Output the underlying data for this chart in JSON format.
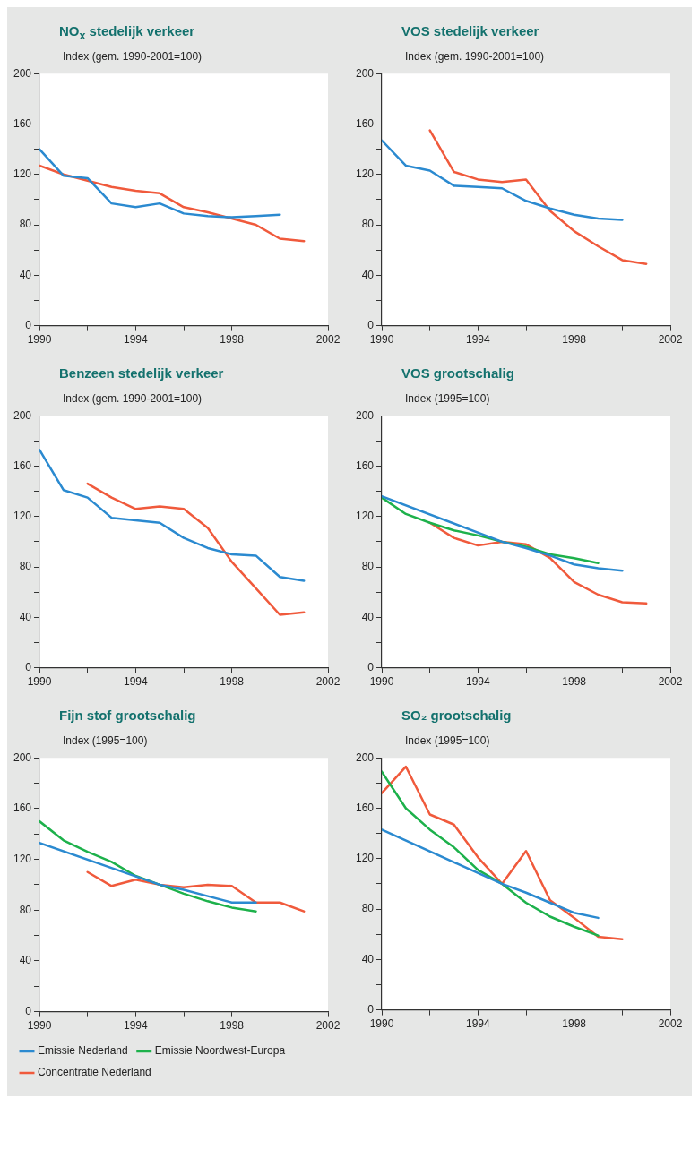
{
  "chart_data": [
    {
      "type": "line",
      "title": "NO$_{x}$ stedelijk verkeer",
      "ylabel": "Index (gem. 1990-2001=100)",
      "xlim": [
        1990,
        2002
      ],
      "xticks": [
        1990,
        {
          "value": 1992,
          "label": null
        },
        1994,
        {
          "value": 1996,
          "label": null
        },
        1998,
        {
          "value": 2000,
          "label": null
        },
        2002
      ],
      "ylim": [
        0,
        200
      ],
      "yticks": [
        0,
        {
          "value": 20,
          "label": null
        },
        40,
        {
          "value": 60,
          "label": null
        },
        80,
        {
          "value": 100,
          "label": null
        },
        120,
        {
          "value": 140,
          "label": null
        },
        160,
        {
          "value": 180,
          "label": null
        },
        200
      ],
      "series": [
        {
          "color": "#2b8ad0",
          "x": [
            1990,
            1991,
            1992,
            1993,
            1994,
            1995,
            1996,
            1997,
            1998,
            1999,
            2000
          ],
          "values": [
            140,
            119,
            117,
            97,
            94,
            97,
            89,
            87,
            86,
            87,
            88
          ]
        },
        {
          "color": "#f05a3c",
          "x": [
            1990,
            1991,
            1992,
            1993,
            1994,
            1995,
            1996,
            1997,
            1998,
            1999,
            2000,
            2001
          ],
          "values": [
            127,
            120,
            115,
            110,
            107,
            105,
            94,
            90,
            85,
            80,
            69,
            67
          ]
        }
      ]
    },
    {
      "type": "line",
      "title": "VOS stedelijk verkeer",
      "ylabel": "Index (gem. 1990-2001=100)",
      "xlim": [
        1990,
        2002
      ],
      "xticks": [
        1990,
        {
          "value": 1992,
          "label": null
        },
        1994,
        {
          "value": 1996,
          "label": null
        },
        1998,
        {
          "value": 2000,
          "label": null
        },
        2002
      ],
      "ylim": [
        0,
        200
      ],
      "yticks": [
        0,
        {
          "value": 20,
          "label": null
        },
        40,
        {
          "value": 60,
          "label": null
        },
        80,
        {
          "value": 100,
          "label": null
        },
        120,
        {
          "value": 140,
          "label": null
        },
        160,
        {
          "value": 180,
          "label": null
        },
        200
      ],
      "series": [
        {
          "color": "#2b8ad0",
          "x": [
            1990,
            1991,
            1992,
            1993,
            1994,
            1995,
            1996,
            1997,
            1998,
            1999,
            2000
          ],
          "values": [
            147,
            127,
            123,
            111,
            110,
            109,
            99,
            93,
            88,
            85,
            84
          ]
        },
        {
          "color": "#f05a3c",
          "x": [
            1992,
            1993,
            1994,
            1995,
            1996,
            1997,
            1998,
            1999,
            2000,
            2001
          ],
          "values": [
            155,
            122,
            116,
            114,
            116,
            91,
            75,
            63,
            52,
            49
          ]
        }
      ]
    },
    {
      "type": "line",
      "title": "Benzeen stedelijk verkeer",
      "ylabel": "Index (gem. 1990-2001=100)",
      "xlim": [
        1990,
        2002
      ],
      "xticks": [
        1990,
        {
          "value": 1992,
          "label": null
        },
        1994,
        {
          "value": 1996,
          "label": null
        },
        1998,
        {
          "value": 2000,
          "label": null
        },
        2002
      ],
      "ylim": [
        0,
        200
      ],
      "yticks": [
        0,
        {
          "value": 20,
          "label": null
        },
        40,
        {
          "value": 60,
          "label": null
        },
        80,
        {
          "value": 100,
          "label": null
        },
        120,
        {
          "value": 140,
          "label": null
        },
        160,
        {
          "value": 180,
          "label": null
        },
        200
      ],
      "series": [
        {
          "color": "#2b8ad0",
          "x": [
            1990,
            1991,
            1992,
            1993,
            1994,
            1995,
            1996,
            1997,
            1998,
            1999,
            2000,
            2001
          ],
          "values": [
            173,
            141,
            135,
            119,
            117,
            115,
            103,
            95,
            90,
            89,
            72,
            69
          ]
        },
        {
          "color": "#f05a3c",
          "x": [
            1992,
            1993,
            1994,
            1995,
            1996,
            1997,
            1998,
            1999,
            2000,
            2001
          ],
          "values": [
            146,
            135,
            126,
            128,
            126,
            111,
            84,
            63,
            42,
            44
          ]
        }
      ]
    },
    {
      "type": "line",
      "title": "VOS grootschalig",
      "ylabel": "Index (1995=100)",
      "xlim": [
        1990,
        2002
      ],
      "xticks": [
        1990,
        {
          "value": 1992,
          "label": null
        },
        1994,
        {
          "value": 1996,
          "label": null
        },
        1998,
        {
          "value": 2000,
          "label": null
        },
        2002
      ],
      "ylim": [
        0,
        200
      ],
      "yticks": [
        0,
        {
          "value": 20,
          "label": null
        },
        40,
        {
          "value": 60,
          "label": null
        },
        80,
        {
          "value": 100,
          "label": null
        },
        120,
        {
          "value": 140,
          "label": null
        },
        160,
        {
          "value": 180,
          "label": null
        },
        200
      ],
      "series": [
        {
          "color": "#2b8ad0",
          "x": [
            1990,
            1995,
            1996,
            1997,
            1998,
            1999,
            2000
          ],
          "values": [
            136,
            100,
            95,
            89,
            82,
            79,
            77
          ]
        },
        {
          "color": "#1db14b",
          "x": [
            1990,
            1991,
            1992,
            1993,
            1994,
            1995,
            1996,
            1997,
            1998,
            1999
          ],
          "values": [
            135,
            122,
            115,
            109,
            105,
            100,
            96,
            90,
            87,
            83
          ]
        },
        {
          "color": "#f05a3c",
          "x": [
            1992,
            1993,
            1994,
            1995,
            1996,
            1997,
            1998,
            1999,
            2000,
            2001
          ],
          "values": [
            115,
            103,
            97,
            100,
            98,
            87,
            68,
            58,
            52,
            51
          ]
        }
      ]
    },
    {
      "type": "line",
      "title": "Fijn stof grootschalig",
      "ylabel": "Index (1995=100)",
      "xlim": [
        1990,
        2002
      ],
      "xticks": [
        1990,
        {
          "value": 1992,
          "label": null
        },
        1994,
        {
          "value": 1996,
          "label": null
        },
        1998,
        {
          "value": 2000,
          "label": null
        },
        2002
      ],
      "ylim": [
        0,
        200
      ],
      "yticks": [
        0,
        {
          "value": 20,
          "label": null
        },
        40,
        {
          "value": 60,
          "label": null
        },
        80,
        {
          "value": 100,
          "label": null
        },
        120,
        {
          "value": 140,
          "label": null
        },
        160,
        {
          "value": 180,
          "label": null
        },
        200
      ],
      "legend": "bottom left",
      "series": [
        {
          "name": "Emissie Nederland",
          "color": "#2b8ad0",
          "x": [
            1990,
            1995,
            1996,
            1997,
            1998,
            1999
          ],
          "values": [
            133,
            100,
            96,
            91,
            86,
            86
          ]
        },
        {
          "name": "Emissie Noordwest-Europa",
          "color": "#1db14b",
          "x": [
            1990,
            1991,
            1992,
            1993,
            1994,
            1995,
            1996,
            1997,
            1998,
            1999
          ],
          "values": [
            150,
            135,
            126,
            118,
            107,
            100,
            93,
            87,
            82,
            79
          ]
        },
        {
          "name": "Concentratie Nederland",
          "color": "#f05a3c",
          "x": [
            1992,
            1993,
            1994,
            1995,
            1996,
            1997,
            1998,
            1999,
            2000,
            2001
          ],
          "values": [
            110,
            99,
            104,
            100,
            98,
            100,
            99,
            86,
            86,
            79
          ]
        }
      ]
    },
    {
      "type": "line",
      "title": "SO₂ grootschalig",
      "ylabel": "Index (1995=100)",
      "xlim": [
        1990,
        2002
      ],
      "xticks": [
        1990,
        {
          "value": 1992,
          "label": null
        },
        1994,
        {
          "value": 1996,
          "label": null
        },
        1998,
        {
          "value": 2000,
          "label": null
        },
        2002
      ],
      "ylim": [
        0,
        200
      ],
      "yticks": [
        0,
        {
          "value": 20,
          "label": null
        },
        40,
        {
          "value": 60,
          "label": null
        },
        80,
        {
          "value": 100,
          "label": null
        },
        120,
        {
          "value": 140,
          "label": null
        },
        160,
        {
          "value": 180,
          "label": null
        },
        200
      ],
      "series": [
        {
          "color": "#2b8ad0",
          "x": [
            1990,
            1995,
            1996,
            1997,
            1998,
            1999
          ],
          "values": [
            143,
            100,
            93,
            85,
            77,
            73
          ]
        },
        {
          "color": "#1db14b",
          "x": [
            1990,
            1991,
            1992,
            1993,
            1994,
            1995,
            1996,
            1997,
            1998,
            1999
          ],
          "values": [
            189,
            160,
            143,
            129,
            111,
            100,
            85,
            74,
            66,
            59
          ]
        },
        {
          "color": "#f05a3c",
          "x": [
            1990,
            1991,
            1992,
            1993,
            1994,
            1995,
            1996,
            1997,
            1998,
            1999,
            2000
          ],
          "values": [
            172,
            193,
            155,
            147,
            121,
            100,
            126,
            87,
            73,
            58,
            56
          ]
        }
      ]
    }
  ]
}
